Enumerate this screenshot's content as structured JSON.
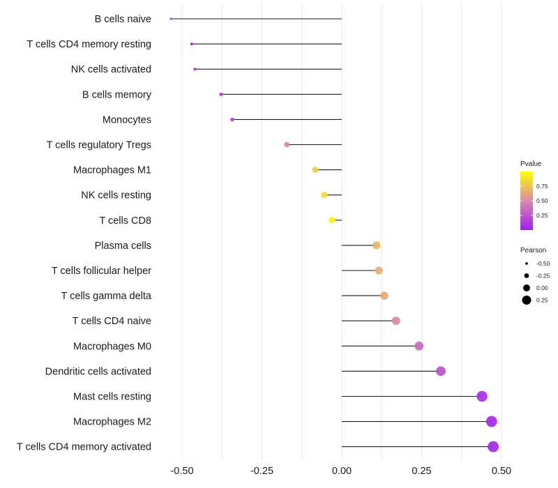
{
  "chart_data": {
    "type": "lollipop",
    "title": "",
    "xlabel": "",
    "ylabel": "",
    "xlim": [
      -0.55,
      0.55
    ],
    "xticks": [
      -0.5,
      -0.25,
      0.0,
      0.25,
      0.5
    ],
    "xtick_labels": [
      "-0.50",
      "-0.25",
      "0.00",
      "0.25",
      "0.50"
    ],
    "grid": true,
    "categories": [
      "B cells naive",
      "T cells CD4 memory resting",
      "NK cells activated",
      "B cells memory",
      "Monocytes",
      "T cells regulatory  Tregs",
      "Macrophages M1",
      "NK cells resting",
      "T cells CD8",
      "Plasma cells",
      "T cells follicular helper",
      "T cells gamma delta",
      "T cells CD4 naive",
      "Macrophages M0",
      "Dendritic cells activated",
      "Mast cells resting",
      "Macrophages M2",
      "T cells CD4 memory activated"
    ],
    "pearson": [
      -0.535,
      -0.47,
      -0.46,
      -0.378,
      -0.343,
      -0.172,
      -0.083,
      -0.055,
      -0.031,
      0.109,
      0.116,
      0.133,
      0.17,
      0.242,
      0.31,
      0.439,
      0.469,
      0.474
    ],
    "pvalue": [
      0.02,
      0.03,
      0.04,
      0.1,
      0.15,
      0.5,
      0.8,
      0.85,
      0.95,
      0.68,
      0.66,
      0.62,
      0.5,
      0.35,
      0.22,
      0.05,
      0.03,
      0.03
    ],
    "color_scale": {
      "low": "#a020f0",
      "high": "#ffff00",
      "range": [
        0,
        1
      ]
    },
    "legends": {
      "color": {
        "title": "Pvalue",
        "ticks": [
          0.25,
          0.5,
          0.75
        ],
        "tick_labels": [
          "0.25",
          "0.50",
          "0.75"
        ],
        "placement": "right"
      },
      "size": {
        "title": "Pearson",
        "values": [
          -0.5,
          -0.25,
          0.0,
          0.25
        ],
        "labels": [
          "-0.50",
          "-0.25",
          "0.00",
          "0.25"
        ],
        "placement": "right"
      }
    }
  }
}
